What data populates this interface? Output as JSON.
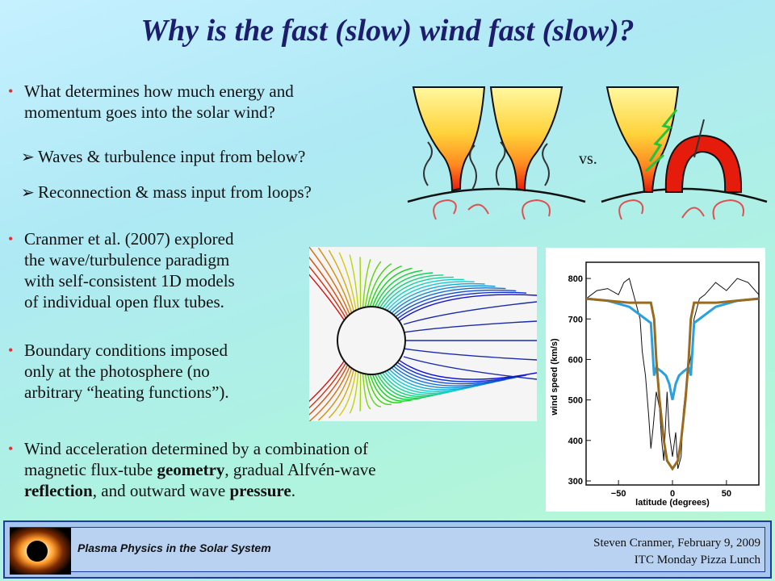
{
  "title": "Why is the fast (slow) wind fast (slow)?",
  "bullets": {
    "b1_line1": "What determines how much energy and",
    "b1_line2": "momentum goes into the solar wind?",
    "sub1": "Waves & turbulence input from below?",
    "sub2": "Reconnection & mass input from loops?",
    "b2_line1": "Cranmer et al. (2007) explored",
    "b2_line2": "the wave/turbulence paradigm",
    "b2_line3": "with self-consistent 1D models",
    "b2_line4": "of individual open flux tubes.",
    "b3_line1": "Boundary conditions imposed",
    "b3_line2": "only at the photosphere (no",
    "b3_line3": "arbitrary “heating functions”).",
    "b4_line1": "Wind acceleration determined by a combination of",
    "b4_line2_a": "magnetic flux-tube ",
    "b4_line2_b": "geometry",
    "b4_line2_c": ", gradual Alfvén-wave",
    "b4_line3_a": "reflection",
    "b4_line3_b": ", and outward wave ",
    "b4_line3_c": "pressure",
    "b4_line3_d": "."
  },
  "diagram": {
    "vs_label": "vs."
  },
  "footer": {
    "course": "Plasma Physics in the Solar System",
    "author_date": "Steven Cranmer, February 9, 2009",
    "event": "ITC Monday Pizza Lunch"
  },
  "colors": {
    "title": "#1d1d6e",
    "bullet": "#dd3333",
    "footer_border": "#1d3a9c"
  },
  "chart_data": {
    "type": "line",
    "xlabel": "latitude (degrees)",
    "ylabel": "wind speed (km/s)",
    "xlim": [
      -80,
      80
    ],
    "ylim": [
      290,
      840
    ],
    "xticks": [
      "−50",
      "0",
      "50"
    ],
    "yticks": [
      "300",
      "400",
      "500",
      "600",
      "700",
      "800"
    ],
    "series": [
      {
        "style": "observed (thin black)",
        "x": [
          -80,
          -70,
          -60,
          -50,
          -45,
          -40,
          -35,
          -30,
          -28,
          -25,
          -22,
          -20,
          -18,
          -15,
          -12,
          -10,
          -8,
          -5,
          -3,
          0,
          3,
          5,
          8,
          10,
          12,
          15,
          18,
          20,
          25,
          30,
          40,
          50,
          60,
          70,
          80
        ],
        "y": [
          750,
          770,
          775,
          760,
          790,
          800,
          750,
          700,
          620,
          560,
          460,
          380,
          430,
          520,
          480,
          400,
          350,
          520,
          420,
          360,
          420,
          330,
          360,
          470,
          520,
          580,
          620,
          700,
          750,
          760,
          790,
          770,
          800,
          790,
          760
        ]
      },
      {
        "style": "model (colored)",
        "x": [
          -80,
          -60,
          -40,
          -25,
          -20,
          -17,
          -15,
          -10,
          -6,
          -3,
          0,
          3,
          6,
          10,
          15,
          17,
          20,
          25,
          40,
          60,
          80
        ],
        "y": [
          750,
          745,
          730,
          700,
          690,
          560,
          580,
          570,
          560,
          540,
          500,
          540,
          560,
          570,
          580,
          560,
          690,
          700,
          730,
          745,
          750
        ]
      },
      {
        "style": "model (brown)",
        "x": [
          -80,
          -60,
          -40,
          -25,
          -20,
          -17,
          -15,
          -12,
          -8,
          -5,
          0,
          5,
          8,
          12,
          15,
          17,
          20,
          25,
          40,
          60,
          80
        ],
        "y": [
          750,
          745,
          740,
          740,
          740,
          700,
          600,
          500,
          400,
          350,
          330,
          350,
          400,
          500,
          600,
          700,
          740,
          740,
          740,
          745,
          750
        ]
      }
    ]
  }
}
